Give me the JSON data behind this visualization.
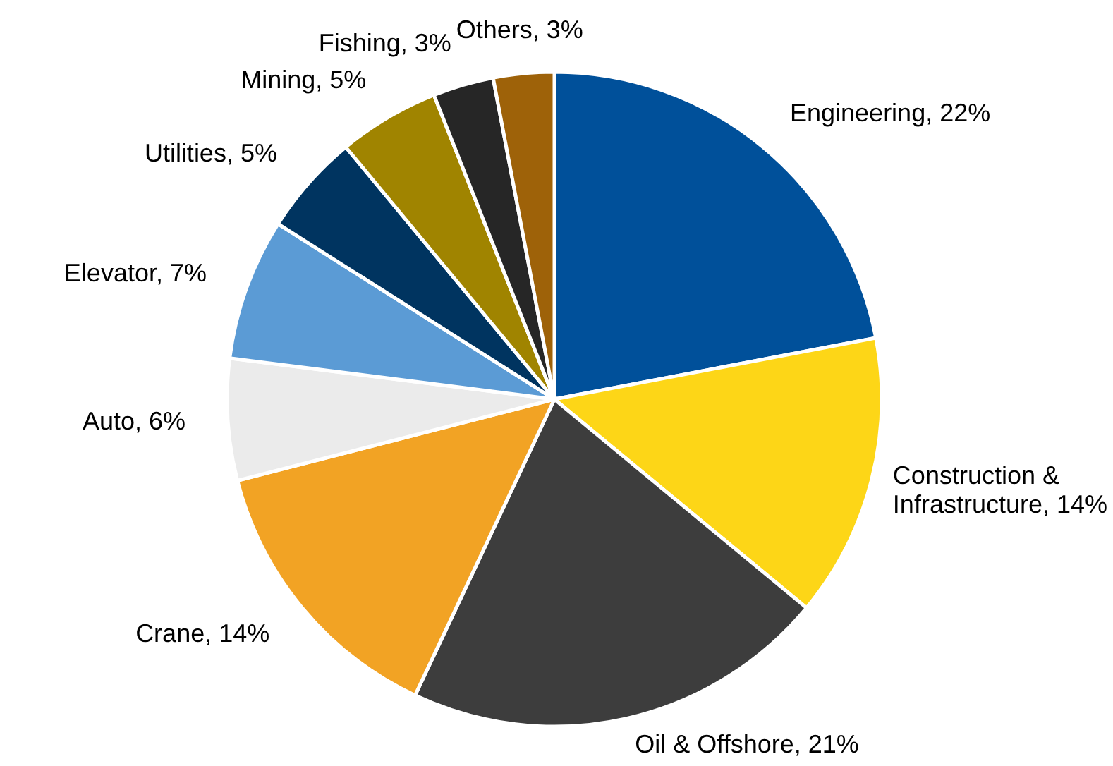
{
  "chart_data": {
    "type": "pie",
    "categories": [
      "Engineering",
      "Construction & Infrastructure",
      "Oil & Offshore",
      "Crane",
      "Auto",
      "Elevator",
      "Utilities",
      "Mining",
      "Fishing",
      "Others"
    ],
    "values": [
      22,
      14,
      21,
      14,
      6,
      7,
      5,
      5,
      3,
      3
    ],
    "value_labels": [
      "22%",
      "14%",
      "21%",
      "14%",
      "6%",
      "7%",
      "5%",
      "5%",
      "3%",
      "3%"
    ],
    "colors": [
      "#00509a",
      "#fdd617",
      "#3d3d3d",
      "#f2a324",
      "#ebebeb",
      "#5b9bd5",
      "#003460",
      "#a08400",
      "#262626",
      "#9e6209"
    ]
  }
}
